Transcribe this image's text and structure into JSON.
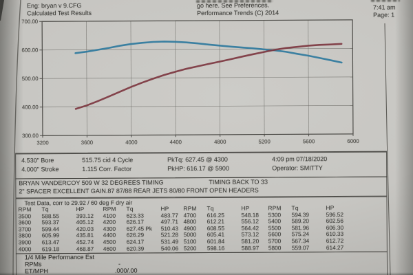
{
  "header": {
    "eng": "Eng: bryan v 9.CFG",
    "calc": "Calculated Test Results",
    "pref1": "go here.  See Preferences.",
    "pref2": "Performance Trends (C) 2014",
    "time": "7:41 am",
    "page": "Page: 1"
  },
  "chart_data": {
    "type": "line",
    "title": "",
    "xlabel": "RPM",
    "ylabel": "",
    "xlim": [
      3200,
      6000
    ],
    "ylim": [
      300,
      700
    ],
    "xticks": [
      "3200",
      "3600",
      "4000",
      "4400",
      "4800",
      "5200",
      "5600",
      "6000"
    ],
    "yticks": [
      "700.00",
      "600.00",
      "500.00",
      "400.00",
      "300.00"
    ],
    "grid": true,
    "legend": "none",
    "x": [
      3500,
      3600,
      3700,
      3800,
      3900,
      4000,
      4100,
      4200,
      4300,
      4400,
      4500,
      4600,
      4700,
      4800,
      4900,
      5000,
      5100,
      5200,
      5300,
      5400,
      5500,
      5600,
      5700,
      5800,
      5900
    ],
    "series": [
      {
        "name": "Tq",
        "color": "#2f7a9d",
        "values": [
          588.55,
          593.37,
          599.44,
          605.99,
          613.47,
          619.18,
          623.33,
          626.17,
          627.45,
          626.29,
          624.17,
          620.39,
          616.25,
          612.21,
          608.55,
          605.41,
          601.84,
          598.16,
          594.39,
          589.2,
          581.96,
          575.24,
          567.34,
          559.07,
          550.6
        ]
      },
      {
        "name": "HP",
        "color": "#7d3740",
        "values": [
          393.12,
          405.12,
          420.03,
          435.81,
          452.74,
          468.87,
          483.77,
          497.71,
          510.43,
          521.28,
          531.49,
          540.06,
          548.18,
          556.12,
          564.42,
          573.12,
          581.2,
          588.97,
          596.52,
          602.56,
          606.3,
          610.33,
          612.72,
          614.27,
          616.17
        ]
      }
    ]
  },
  "summary": {
    "bore": "4.530\" Bore",
    "cid": "515.75 cid  4 Cycle",
    "pktq": "PkTq: 627.45 @  4300",
    "datetime": "4:09 pm  07/18/2020",
    "stroke": "4.000\" Stroke",
    "corr": "1.115 Corr. Factor",
    "pkhp": "PkHP: 616.17 @  5900",
    "operator": "Operator: SMITTY"
  },
  "comments": {
    "line1_left": "BRYAN VANDERCOY 509 W 32 DEGREES TIMING",
    "line1_right": "TIMING BACK TO 33",
    "line2": "2\" SPACER EXCELLENT GAIN.87 87/88 REAR JETS 80/80 FRONT  OPEN HEADERS"
  },
  "test_data": {
    "title": "Test Data, corr to 29.92 / 60 deg F dry air",
    "headers": [
      "RPM",
      "Tq",
      "HP"
    ],
    "groups": [
      [
        [
          "3500",
          "588.55",
          "393.12"
        ],
        [
          "3600",
          "593.37",
          "405.12"
        ],
        [
          "3700",
          "599.44",
          "420.03"
        ],
        [
          "3800",
          "605.99",
          "435.81"
        ],
        [
          "3900",
          "613.47",
          "452.74"
        ],
        [
          "4000",
          "619.18",
          "468.87"
        ]
      ],
      [
        [
          "4100",
          "623.33",
          "483.77"
        ],
        [
          "4200",
          "626.17",
          "497.71"
        ],
        [
          "4300",
          "627.45 Pk",
          "510.43"
        ],
        [
          "4400",
          "626.29",
          "521.28"
        ],
        [
          "4500",
          "624.17",
          "531.49"
        ],
        [
          "4600",
          "620.39",
          "540.06"
        ]
      ],
      [
        [
          "4700",
          "616.25",
          "548.18"
        ],
        [
          "4800",
          "612.21",
          "556.12"
        ],
        [
          "4900",
          "608.55",
          "564.42"
        ],
        [
          "5000",
          "605.41",
          "573.12"
        ],
        [
          "5100",
          "601.84",
          "581.20"
        ],
        [
          "5200",
          "598.16",
          "588.97"
        ]
      ],
      [
        [
          "5300",
          "594.39",
          "596.52"
        ],
        [
          "5400",
          "589.20",
          "602.56"
        ],
        [
          "5500",
          "581.96",
          "606.30"
        ],
        [
          "5600",
          "575.24",
          "610.33"
        ],
        [
          "5700",
          "567.34",
          "612.72"
        ],
        [
          "5800",
          "559.07",
          "614.27"
        ]
      ]
    ]
  },
  "quarter_mile": {
    "title": "1/4 Mile Performance Est",
    "rows": [
      {
        "label": "RPMs",
        "value": "-"
      },
      {
        "label": "ET/MPH",
        "value": ".000/.00"
      }
    ]
  }
}
